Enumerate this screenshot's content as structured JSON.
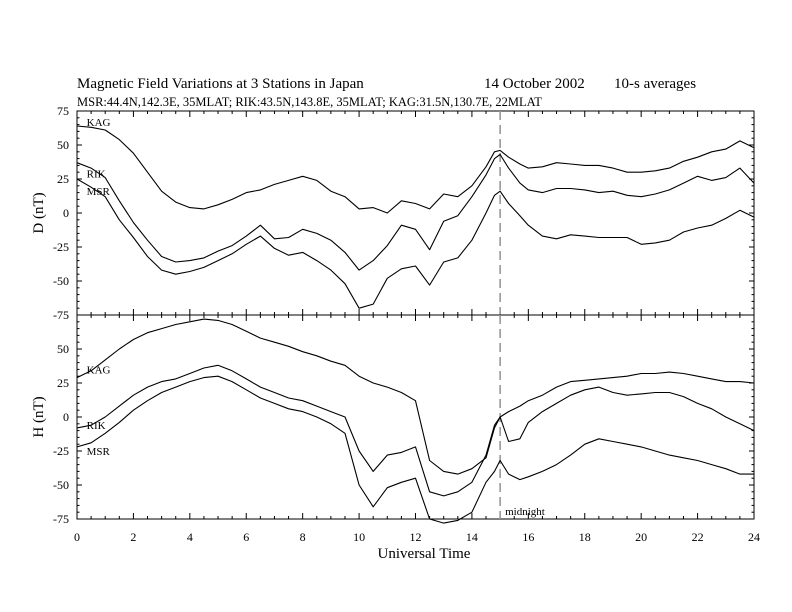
{
  "chart_data": {
    "type": "line",
    "title": "Magnetic Field Variations at 3 Stations in Japan",
    "date": "14  October 2002",
    "averaging": "10-s averages",
    "subtitle": "MSR:44.4N,142.3E, 35MLAT;   RIK:43.5N,143.8E, 35MLAT;   KAG:31.5N,130.7E, 22MLAT",
    "xlabel": "Universal Time",
    "xlim": [
      0,
      24
    ],
    "xticks": [
      "0",
      "2",
      "4",
      "6",
      "8",
      "10",
      "12",
      "14",
      "16",
      "18",
      "20",
      "22",
      "24"
    ],
    "midnight_ut": 15,
    "midnight_label": "midnight",
    "panels": [
      {
        "ylabel": "D (nT)",
        "ylim": [
          -75,
          75
        ],
        "yticks": [
          "75",
          "50",
          "25",
          "0",
          "-25",
          "-50",
          "-75"
        ],
        "series": [
          {
            "name": "KAG",
            "label_pos": [
              0.2,
              67
            ],
            "x": [
              0,
              0.5,
              1,
              1.5,
              2,
              2.5,
              3,
              3.5,
              4,
              4.5,
              5,
              5.5,
              6,
              6.5,
              7,
              7.5,
              8,
              8.5,
              9,
              9.5,
              10,
              10.5,
              11,
              11.5,
              12,
              12.5,
              13,
              13.5,
              14,
              14.5,
              14.8,
              15,
              15.3,
              15.7,
              16,
              16.5,
              17,
              17.5,
              18,
              18.5,
              19,
              19.5,
              20,
              20.5,
              21,
              21.5,
              22,
              22.5,
              23,
              23.5,
              24
            ],
            "y": [
              64,
              63,
              61,
              54,
              44,
              30,
              16,
              8,
              4,
              3,
              6,
              10,
              15,
              17,
              21,
              24,
              27,
              24,
              16,
              12,
              3,
              4,
              0,
              9,
              7,
              3,
              14,
              12,
              20,
              34,
              45,
              46,
              41,
              36,
              33,
              34,
              37,
              36,
              35,
              35,
              33,
              30,
              30,
              31,
              33,
              38,
              41,
              45,
              47,
              53,
              48
            ]
          },
          {
            "name": "RIK",
            "label_pos": [
              0.2,
              29
            ],
            "x": [
              0,
              0.5,
              1,
              1.5,
              2,
              2.5,
              3,
              3.5,
              4,
              4.5,
              5,
              5.5,
              6,
              6.5,
              7,
              7.5,
              8,
              8.5,
              9,
              9.5,
              10,
              10.5,
              11,
              11.5,
              12,
              12.5,
              13,
              13.5,
              14,
              14.5,
              14.8,
              15,
              15.3,
              15.7,
              16,
              16.5,
              17,
              17.5,
              18,
              18.5,
              19,
              19.5,
              20,
              20.5,
              21,
              21.5,
              22,
              22.5,
              23,
              23.5,
              24
            ],
            "y": [
              37,
              33,
              26,
              9,
              -7,
              -20,
              -32,
              -36,
              -35,
              -33,
              -28,
              -24,
              -17,
              -9,
              -19,
              -18,
              -12,
              -15,
              -20,
              -29,
              -42,
              -35,
              -24,
              -9,
              -12,
              -27,
              -6,
              -2,
              12,
              28,
              40,
              43,
              33,
              22,
              17,
              15,
              18,
              18,
              17,
              15,
              16,
              13,
              12,
              14,
              17,
              22,
              27,
              24,
              26,
              33,
              22
            ]
          },
          {
            "name": "MSR",
            "label_pos": [
              0.2,
              16
            ],
            "x": [
              0,
              0.5,
              1,
              1.5,
              2,
              2.5,
              3,
              3.5,
              4,
              4.5,
              5,
              5.5,
              6,
              6.5,
              7,
              7.5,
              8,
              8.5,
              9,
              9.5,
              10,
              10.5,
              11,
              11.5,
              12,
              12.5,
              13,
              13.5,
              14,
              14.5,
              14.8,
              15,
              15.3,
              15.7,
              16,
              16.5,
              17,
              17.5,
              18,
              18.5,
              19,
              19.5,
              20,
              20.5,
              21,
              21.5,
              22,
              22.5,
              23,
              23.5,
              24
            ],
            "y": [
              25,
              19,
              12,
              -5,
              -18,
              -32,
              -42,
              -45,
              -43,
              -40,
              -35,
              -30,
              -23,
              -17,
              -26,
              -31,
              -29,
              -35,
              -42,
              -52,
              -70,
              -67,
              -48,
              -41,
              -39,
              -53,
              -36,
              -33,
              -20,
              0,
              13,
              16,
              7,
              -2,
              -9,
              -17,
              -19,
              -16,
              -17,
              -18,
              -18,
              -18,
              -23,
              -22,
              -20,
              -14,
              -11,
              -9,
              -4,
              2,
              -3
            ]
          }
        ]
      },
      {
        "ylabel": "H (nT)",
        "ylim": [
          -75,
          75
        ],
        "yticks": [
          "75",
          "50",
          "25",
          "0",
          "-25",
          "-50",
          "-75"
        ],
        "series": [
          {
            "name": "KAG",
            "label_pos": [
              0.2,
              35
            ],
            "x": [
              0,
              0.5,
              1,
              1.5,
              2,
              2.5,
              3,
              3.5,
              4,
              4.5,
              5,
              5.5,
              6,
              6.5,
              7,
              7.5,
              8,
              8.5,
              9,
              9.5,
              10,
              10.5,
              11,
              11.5,
              12,
              12.5,
              13,
              13.5,
              14,
              14.5,
              14.8,
              15,
              15.3,
              15.7,
              16,
              16.5,
              17,
              17.5,
              18,
              18.5,
              19,
              19.5,
              20,
              20.5,
              21,
              21.5,
              22,
              22.5,
              23,
              23.5,
              24
            ],
            "y": [
              29,
              34,
              42,
              50,
              57,
              62,
              65,
              68,
              70,
              72,
              71,
              68,
              63,
              58,
              55,
              52,
              48,
              45,
              41,
              38,
              30,
              25,
              22,
              18,
              12,
              -32,
              -40,
              -42,
              -38,
              -30,
              -8,
              0,
              4,
              8,
              12,
              16,
              22,
              26,
              27,
              28,
              29,
              30,
              32,
              32,
              33,
              32,
              30,
              28,
              26,
              26,
              25
            ]
          },
          {
            "name": "RIK",
            "label_pos": [
              0.2,
              -6
            ],
            "x": [
              0,
              0.5,
              1,
              1.5,
              2,
              2.5,
              3,
              3.5,
              4,
              4.5,
              5,
              5.5,
              6,
              6.5,
              7,
              7.5,
              8,
              8.5,
              9,
              9.5,
              10,
              10.5,
              11,
              11.5,
              12,
              12.5,
              13,
              13.5,
              14,
              14.5,
              14.8,
              15,
              15.3,
              15.7,
              16,
              16.5,
              17,
              17.5,
              18,
              18.5,
              19,
              19.5,
              20,
              20.5,
              21,
              21.5,
              22,
              22.5,
              23,
              23.5,
              24
            ],
            "y": [
              -8,
              -6,
              0,
              8,
              16,
              22,
              26,
              28,
              32,
              36,
              38,
              34,
              28,
              22,
              18,
              14,
              12,
              8,
              4,
              0,
              -25,
              -40,
              -28,
              -26,
              -22,
              -55,
              -58,
              -55,
              -48,
              -28,
              -6,
              0,
              -18,
              -16,
              -4,
              4,
              10,
              16,
              20,
              22,
              18,
              16,
              17,
              18,
              18,
              15,
              10,
              6,
              0,
              -5,
              -10
            ]
          },
          {
            "name": "MSR",
            "label_pos": [
              0.2,
              -25
            ],
            "x": [
              0,
              0.5,
              1,
              1.5,
              2,
              2.5,
              3,
              3.5,
              4,
              4.5,
              5,
              5.5,
              6,
              6.5,
              7,
              7.5,
              8,
              8.5,
              9,
              9.5,
              10,
              10.5,
              11,
              11.5,
              12,
              12.5,
              13,
              13.5,
              14,
              14.5,
              14.8,
              15,
              15.3,
              15.7,
              16,
              16.5,
              17,
              17.5,
              18,
              18.5,
              19,
              19.5,
              20,
              20.5,
              21,
              21.5,
              22,
              22.5,
              23,
              23.5,
              24
            ],
            "y": [
              -22,
              -19,
              -12,
              -4,
              5,
              12,
              18,
              22,
              26,
              29,
              30,
              26,
              20,
              14,
              10,
              6,
              4,
              0,
              -5,
              -12,
              -50,
              -66,
              -52,
              -48,
              -45,
              -75,
              -78,
              -76,
              -70,
              -48,
              -40,
              -32,
              -42,
              -46,
              -44,
              -40,
              -35,
              -28,
              -20,
              -16,
              -18,
              -20,
              -22,
              -25,
              -28,
              -30,
              -32,
              -35,
              -38,
              -42,
              -42
            ]
          }
        ]
      }
    ]
  }
}
